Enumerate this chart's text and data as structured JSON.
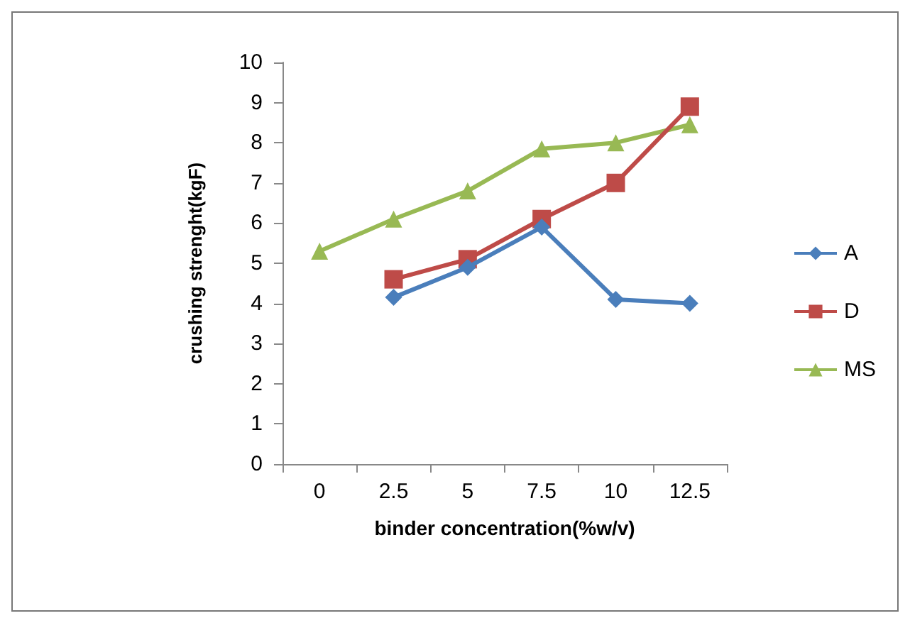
{
  "chart_data": {
    "type": "line",
    "xlabel": "binder concentration(%w/v)",
    "ylabel": "crushing strenght(kgF)",
    "categories": [
      "0",
      "2.5",
      "5",
      "7.5",
      "10",
      "12.5"
    ],
    "series": [
      {
        "name": "A",
        "color": "#4a7ebb",
        "marker": "diamond",
        "values": [
          null,
          4.15,
          4.9,
          5.9,
          4.1,
          4.0
        ]
      },
      {
        "name": "D",
        "color": "#be4b48",
        "marker": "square",
        "values": [
          null,
          4.6,
          5.1,
          6.1,
          7.0,
          8.9
        ]
      },
      {
        "name": "MS",
        "color": "#98b954",
        "marker": "triangle",
        "values": [
          5.3,
          6.1,
          6.8,
          7.85,
          8.0,
          8.45
        ]
      }
    ],
    "ylim": [
      0,
      10
    ],
    "yticks": [
      0,
      1,
      2,
      3,
      4,
      5,
      6,
      7,
      8,
      9,
      10
    ],
    "grid": false,
    "legend": "right"
  }
}
